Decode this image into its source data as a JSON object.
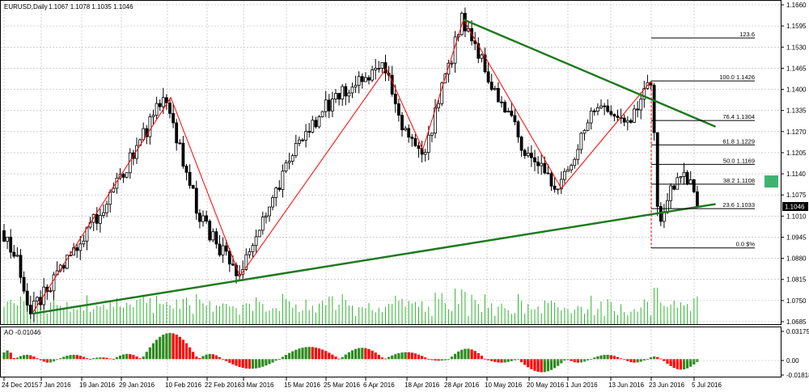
{
  "header": {
    "symbol": "EURUSD,Daily",
    "ohlc": "1.1067 1.1078 1.1035 1.1046"
  },
  "indicator": {
    "label": "AO -0.01046",
    "scale": [
      "0.03175",
      "0.00",
      "-0.01818"
    ]
  },
  "price_tag": "1.1046",
  "colors": {
    "bull": "#2e8b1e",
    "bear": "#ff0000",
    "trendline": "#1f7a1f",
    "zigzag": "#ff0000",
    "grid": "#b4b4b4",
    "volume": "#32b432",
    "marker": "#3cb371"
  },
  "chart_data": {
    "type": "line",
    "price_axis": {
      "min": 1.0685,
      "max": 1.166,
      "ticks": [
        "1.1660",
        "1.1595",
        "1.1530",
        "1.1465",
        "1.1400",
        "1.1335",
        "1.1270",
        "1.1205",
        "1.1140",
        "1.1075",
        "1.1010",
        "1.0945",
        "1.0880",
        "1.0815",
        "1.0750",
        "1.0685"
      ]
    },
    "time_axis": {
      "ticks": [
        "24 Dec 2015",
        "7 Jan 2016",
        "19 Jan 2016",
        "29 Jan 2016",
        "10 Feb 2016",
        "22 Feb 2016",
        "3 Mar 2016",
        "15 Mar 2016",
        "25 Mar 2016",
        "6 Apr 2016",
        "18 Apr 2016",
        "28 Apr 2016",
        "10 May 2016",
        "20 May 2016",
        "1 Jun 2016",
        "13 Jun 2016",
        "23 Jun 2016",
        "5 Jul 2016"
      ]
    },
    "zigzag": [
      {
        "date": "4 Jan 2016",
        "price": 1.0715
      },
      {
        "date": "11 Feb 2016",
        "price": 1.1375
      },
      {
        "date": "2 Mar 2016",
        "price": 1.0825
      },
      {
        "date": "12 Apr 2016",
        "price": 1.1465
      },
      {
        "date": "22 Apr 2016",
        "price": 1.1215
      },
      {
        "date": "3 May 2016",
        "price": 1.1615
      },
      {
        "date": "30 May 2016",
        "price": 1.1095
      },
      {
        "date": "23 Jun 2016",
        "price": 1.1426
      }
    ],
    "fibonacci": [
      {
        "label": "123.6",
        "price": 1.1558
      },
      {
        "label": "100.0 1.1426",
        "price": 1.1426
      },
      {
        "label": "76.4 1.1304",
        "price": 1.1304
      },
      {
        "label": "61.8 1.1229",
        "price": 1.1229
      },
      {
        "label": "50.0 1.1169",
        "price": 1.1169
      },
      {
        "label": "38.2 1.1108",
        "price": 1.1108
      },
      {
        "label": "23.6 1.1033",
        "price": 1.1033
      },
      {
        "label": "0.0 $%",
        "price": 1.0912
      }
    ],
    "trendlines": [
      {
        "name": "upper",
        "from": {
          "date": "3 May 2016",
          "price": 1.1615
        },
        "to": {
          "date": "11 Jul 2016",
          "price": 1.1285
        }
      },
      {
        "name": "lower",
        "from": {
          "date": "4 Jan 2016",
          "price": 1.071
        },
        "to": {
          "date": "11 Jul 2016",
          "price": 1.1047
        }
      }
    ],
    "ao_range": [
      -0.01818,
      0.03175
    ]
  }
}
